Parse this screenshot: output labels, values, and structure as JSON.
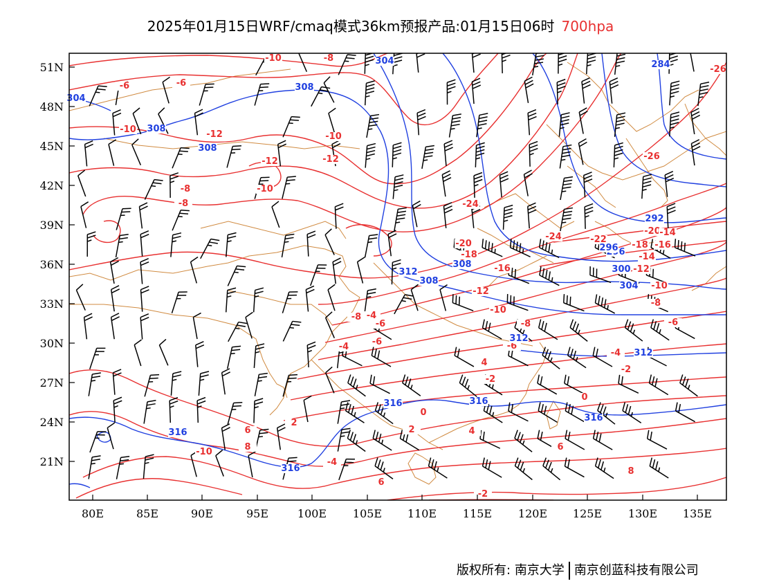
{
  "header": {
    "title": "2025年01月15日WRF/cmaq模式36km预报产品:01月15日06时",
    "level": "700hpa"
  },
  "axes": {
    "x_ticks": [
      "80E",
      "85E",
      "90E",
      "95E",
      "100E",
      "105E",
      "110E",
      "115E",
      "120E",
      "125E",
      "130E",
      "135E"
    ],
    "y_ticks": [
      "51N",
      "48N",
      "45N",
      "42N",
      "39N",
      "36N",
      "33N",
      "30N",
      "27N",
      "24N",
      "21N"
    ]
  },
  "footer": {
    "copyright_label": "版权所有:",
    "owner1": "南京大学",
    "owner2": "南京创蓝科技有限公司"
  },
  "colors": {
    "temperature_contour": "#e83030",
    "height_contour": "#2040e0",
    "border": "#d08a40",
    "wind_barb": "#000000"
  },
  "temperature_labels": [
    "-10",
    "-8",
    "-6",
    "-10",
    "-12",
    "-12",
    "-8",
    "-10",
    "-12",
    "-10",
    "-8",
    "-6",
    "-24",
    "-26",
    "-26",
    "-20",
    "-22",
    "-24",
    "-20",
    "-18",
    "-16",
    "-14",
    "-12",
    "-10",
    "-18",
    "-16",
    "-14",
    "-12",
    "-10",
    "-8",
    "-6",
    "-4",
    "-2",
    "0",
    "-8",
    "-6",
    "-4",
    "-2",
    "0",
    "2",
    "4",
    "6",
    "8",
    "-10",
    "-6",
    "-4",
    "2",
    "4",
    "6",
    "8",
    "6",
    "-2",
    "-4",
    "-6",
    "-8"
  ],
  "height_labels": [
    "304",
    "308",
    "308",
    "308",
    "304",
    "284",
    "292",
    "296",
    "300",
    "304",
    "308",
    "312",
    "312",
    "316",
    "316",
    "316",
    "316",
    "316",
    "312",
    "308",
    "296"
  ]
}
